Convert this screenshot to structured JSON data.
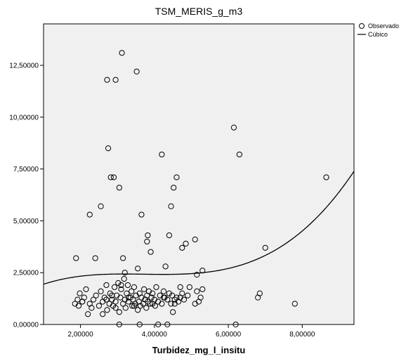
{
  "chart_data": {
    "type": "scatter",
    "title": "TSM_MERIS_g_m3",
    "xlabel": "Turbidez_mg_l_insitu",
    "ylabel": "",
    "xlim": [
      1.0,
      9.4
    ],
    "ylim": [
      0.0,
      14.5
    ],
    "xticks": [
      2,
      4,
      6,
      8
    ],
    "yticks": [
      0,
      2.5,
      5,
      7.5,
      10,
      12.5
    ],
    "xtick_labels": [
      "2,00000",
      "4,00000",
      "6,00000",
      "8,00000"
    ],
    "ytick_labels": [
      "0,00000",
      "2,50000",
      "5,00000",
      "7,50000",
      "10,00000",
      "12,50000"
    ],
    "legend_position": "top-right",
    "grid": false,
    "background_color": "#f0f0f0",
    "series": [
      {
        "name": "Observado",
        "marker": "open-circle",
        "x": [
          1.85,
          1.92,
          1.98,
          2.05,
          2.1,
          2.15,
          2.2,
          2.3,
          2.35,
          2.42,
          2.5,
          2.55,
          2.6,
          2.65,
          2.7,
          2.72,
          2.78,
          2.8,
          2.85,
          2.88,
          2.92,
          2.95,
          2.98,
          3.02,
          3.05,
          3.08,
          3.1,
          3.15,
          3.18,
          3.2,
          3.22,
          3.25,
          3.28,
          3.3,
          3.35,
          3.38,
          3.4,
          3.42,
          3.45,
          3.48,
          3.5,
          3.55,
          3.58,
          3.6,
          3.62,
          3.65,
          3.7,
          3.72,
          3.75,
          3.78,
          3.8,
          3.82,
          3.85,
          3.88,
          3.92,
          3.95,
          4.0,
          4.02,
          4.05,
          4.1,
          4.15,
          4.2,
          4.25,
          4.28,
          4.35,
          4.4,
          4.45,
          4.48,
          4.5,
          4.55,
          4.6,
          4.65,
          4.7,
          4.75,
          4.8,
          4.9,
          5.1,
          5.15,
          5.2,
          5.25,
          5.3,
          1.88,
          2.25,
          2.55,
          2.75,
          2.82,
          2.9,
          3.05,
          3.15,
          3.2,
          3.55,
          3.65,
          3.8,
          3.82,
          3.9,
          4.2,
          4.3,
          4.4,
          4.45,
          4.52,
          4.6,
          4.75,
          4.85,
          5.1,
          5.3,
          6.15,
          6.3,
          6.85,
          7.0,
          7.8,
          8.65,
          1.95,
          2.05,
          2.25,
          2.4,
          2.6,
          2.7,
          2.85,
          2.95,
          3.1,
          3.3,
          3.45,
          3.6,
          3.75,
          3.95,
          4.1,
          4.25,
          4.35,
          4.55,
          4.7,
          4.95,
          5.15,
          6.2,
          6.8,
          3.12,
          3.52,
          2.72,
          2.95,
          3.05
        ],
        "y": [
          1.0,
          1.2,
          1.5,
          1.1,
          1.3,
          1.7,
          0.5,
          0.8,
          1.2,
          1.4,
          0.9,
          1.6,
          1.1,
          1.3,
          1.9,
          0.7,
          1.0,
          1.5,
          1.2,
          0.9,
          1.8,
          1.1,
          1.4,
          2.0,
          0.6,
          1.3,
          1.7,
          1.0,
          2.2,
          1.2,
          0.8,
          1.5,
          1.9,
          1.1,
          1.3,
          1.6,
          0.9,
          1.2,
          1.8,
          1.0,
          1.4,
          0.7,
          1.1,
          1.5,
          0.9,
          1.3,
          1.0,
          1.7,
          1.2,
          0.8,
          1.4,
          1.1,
          1.6,
          1.0,
          1.3,
          1.5,
          1.2,
          0.9,
          1.8,
          1.1,
          1.4,
          1.0,
          1.6,
          1.3,
          1.2,
          1.5,
          1.0,
          1.4,
          0.6,
          1.2,
          1.3,
          1.1,
          1.8,
          1.5,
          1.2,
          1.4,
          1.0,
          1.6,
          1.1,
          1.3,
          1.7,
          3.2,
          5.3,
          5.7,
          8.5,
          7.1,
          7.1,
          6.6,
          3.2,
          2.5,
          2.7,
          5.3,
          4.0,
          4.3,
          3.5,
          8.2,
          2.8,
          4.3,
          5.7,
          6.6,
          7.1,
          3.7,
          3.9,
          4.1,
          2.6,
          9.5,
          8.2,
          1.5,
          3.7,
          1.0,
          7.1,
          0.9,
          1.1,
          1.0,
          3.2,
          0.5,
          1.2,
          1.4,
          0.8,
          1.9,
          1.3,
          0.9,
          0.0,
          1.2,
          1.0,
          0.0,
          1.3,
          0.0,
          1.0,
          1.3,
          1.8,
          2.4,
          0.0,
          1.3,
          13.1,
          12.2,
          11.8,
          11.8,
          0.0
        ]
      },
      {
        "name": "Cúbico",
        "type": "line",
        "coefficients": [
          1.1037,
          1.1183,
          -0.3082,
          0.0277
        ]
      }
    ]
  }
}
